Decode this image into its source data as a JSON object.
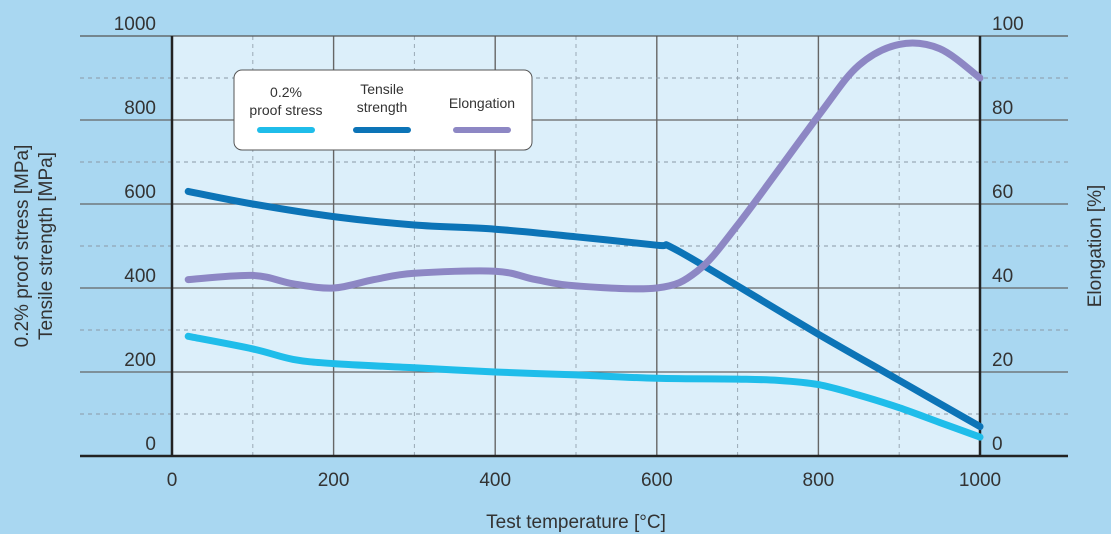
{
  "chart_data": {
    "type": "line",
    "title": "",
    "xlabel": "Test temperature [°C]",
    "ylabel_left": [
      "0.2% proof stress [MPa]",
      "Tensile strength [MPa]"
    ],
    "ylabel_right": "Elongation [%]",
    "xlim": [
      0,
      1000
    ],
    "ylim_left": [
      0,
      1000
    ],
    "ylim_right": [
      0,
      100
    ],
    "x_ticks": [
      "0",
      "200",
      "400",
      "600",
      "800",
      "1000"
    ],
    "y_ticks_left": [
      "0",
      "200",
      "400",
      "600",
      "800",
      "1000"
    ],
    "y_ticks_right": [
      "0",
      "20",
      "40",
      "60",
      "80",
      "100"
    ],
    "grid": true,
    "legend_position": "top-left",
    "series": [
      {
        "name": "0.2% proof stress",
        "legend_lines": [
          "0.2%",
          "proof stress"
        ],
        "axis": "left",
        "color": "#1fbdea",
        "points": [
          [
            20,
            285
          ],
          [
            100,
            255
          ],
          [
            150,
            230
          ],
          [
            200,
            220
          ],
          [
            300,
            210
          ],
          [
            400,
            200
          ],
          [
            500,
            193
          ],
          [
            600,
            185
          ],
          [
            700,
            183
          ],
          [
            750,
            180
          ],
          [
            800,
            170
          ],
          [
            850,
            145
          ],
          [
            900,
            115
          ],
          [
            950,
            80
          ],
          [
            1000,
            45
          ]
        ]
      },
      {
        "name": "Tensile strength",
        "legend_lines": [
          "Tensile",
          "strength"
        ],
        "axis": "left",
        "color": "#0c74b7",
        "points": [
          [
            20,
            630
          ],
          [
            100,
            600
          ],
          [
            200,
            570
          ],
          [
            300,
            550
          ],
          [
            400,
            540
          ],
          [
            500,
            522
          ],
          [
            600,
            502
          ],
          [
            620,
            495
          ],
          [
            700,
            405
          ],
          [
            800,
            290
          ],
          [
            900,
            180
          ],
          [
            1000,
            70
          ]
        ]
      },
      {
        "name": "Elongation",
        "legend_lines": [
          "Elongation"
        ],
        "axis": "right",
        "color": "#8d87c4",
        "points": [
          [
            20,
            42
          ],
          [
            100,
            43
          ],
          [
            150,
            41
          ],
          [
            200,
            40
          ],
          [
            250,
            42
          ],
          [
            300,
            43.5
          ],
          [
            400,
            44
          ],
          [
            450,
            42
          ],
          [
            500,
            40.5
          ],
          [
            600,
            40
          ],
          [
            650,
            44
          ],
          [
            700,
            55
          ],
          [
            800,
            81
          ],
          [
            850,
            93
          ],
          [
            900,
            98
          ],
          [
            950,
            97
          ],
          [
            1000,
            90
          ]
        ]
      }
    ]
  }
}
